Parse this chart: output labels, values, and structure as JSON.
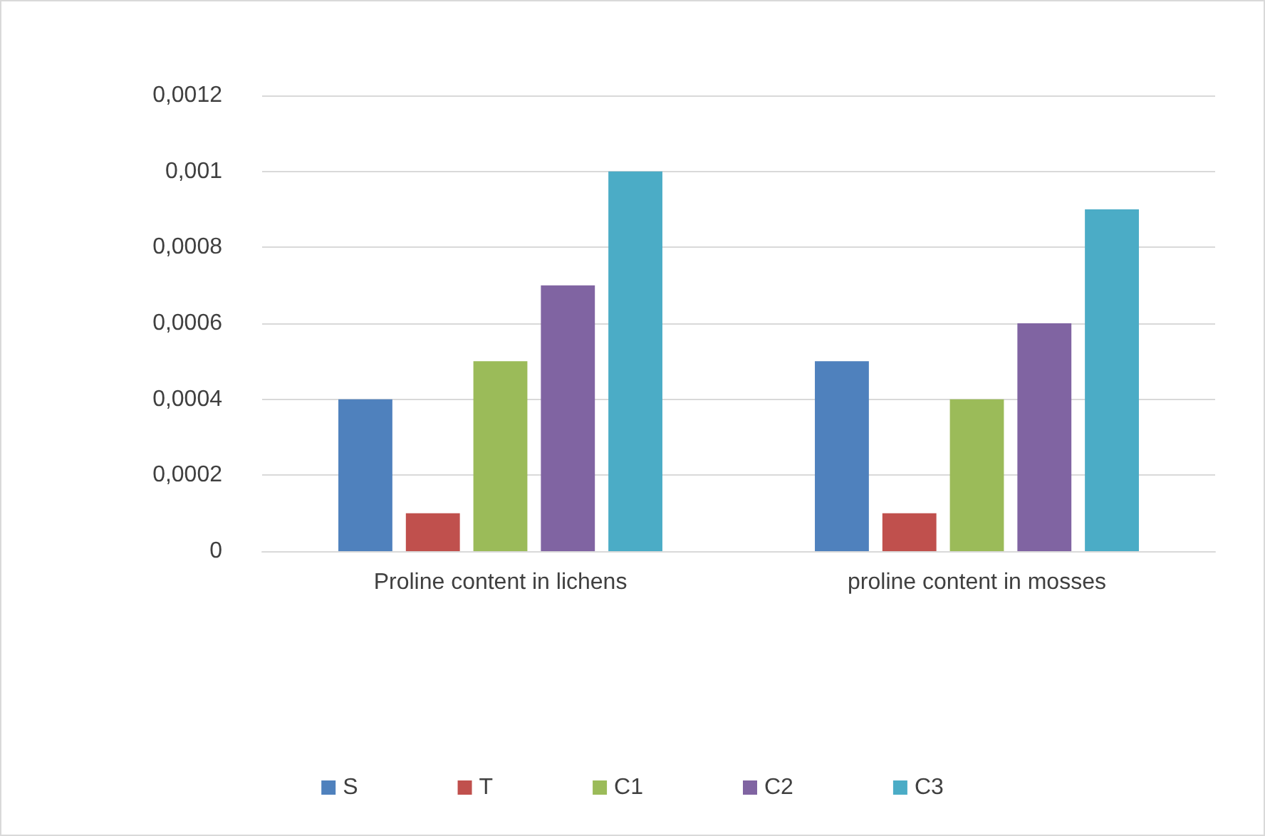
{
  "chart_data": {
    "type": "bar",
    "categories": [
      "Proline content in lichens",
      "proline content in mosses"
    ],
    "series": [
      {
        "name": "S",
        "color": "#4f81bd",
        "values": [
          0.0004,
          0.0005
        ]
      },
      {
        "name": "T",
        "color": "#c0504d",
        "values": [
          0.0001,
          0.0001
        ]
      },
      {
        "name": "C1",
        "color": "#9bbb59",
        "values": [
          0.0005,
          0.0004
        ]
      },
      {
        "name": "C2",
        "color": "#8064a2",
        "values": [
          0.0007,
          0.0006
        ]
      },
      {
        "name": "C3",
        "color": "#4bacc6",
        "values": [
          0.001,
          0.0009
        ]
      }
    ],
    "ylim": [
      0,
      0.0012
    ],
    "yticks": [
      0,
      {
        "value": 0.0002,
        "label": "0,0002"
      },
      {
        "value": 0.0004,
        "label": "0,0004"
      },
      {
        "value": 0.0006,
        "label": "0,0006"
      },
      {
        "value": 0.0008,
        "label": "0,0008"
      },
      {
        "value": 0.001,
        "label": "0,001"
      },
      {
        "value": 0.0012,
        "label": "0,0012"
      }
    ],
    "grid": "y",
    "legend": "bottom"
  }
}
